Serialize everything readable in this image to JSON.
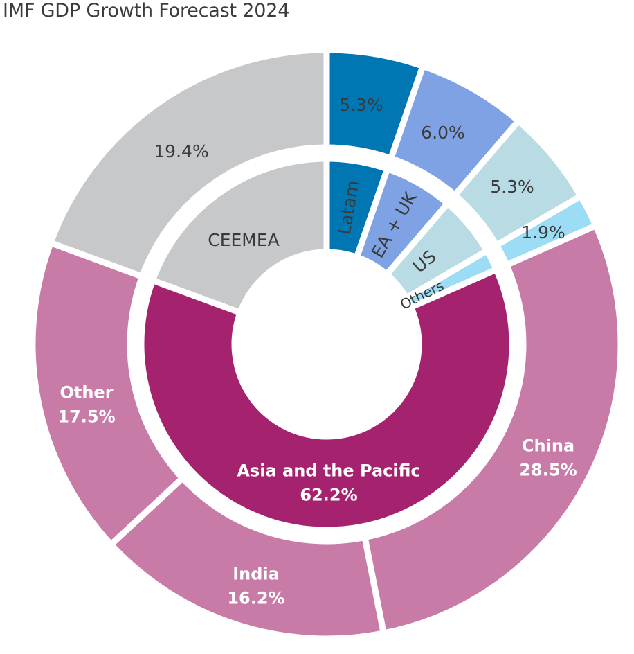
{
  "chart_data": {
    "type": "pie",
    "title": "IMF GDP Growth Forecast 2024",
    "inner": [
      {
        "label": "Latam",
        "start": 0,
        "end": 5.3,
        "color": "#0077B3",
        "text": "#3a3a3a",
        "bold": false
      },
      {
        "label": "EA + UK",
        "start": 5.3,
        "end": 11.3,
        "color": "#7EA2E3",
        "text": "#3a3a3a",
        "bold": false
      },
      {
        "label": "US",
        "start": 11.3,
        "end": 16.6,
        "color": "#B8DBE4",
        "text": "#3a3a3a",
        "bold": false
      },
      {
        "label": "Others",
        "start": 16.6,
        "end": 18.4,
        "color": "#9CDCF5",
        "text": "#3a3a3a",
        "bold": false
      },
      {
        "label": "Asia and the Pacific",
        "value_label": "62.2%",
        "start": 18.4,
        "end": 80.6,
        "color": "#A5236E",
        "text": "#ffffff",
        "bold": true
      },
      {
        "label": "CEEMEA",
        "start": 80.6,
        "end": 100,
        "color": "#C7C8CA",
        "text": "#3a3a3a",
        "bold": false
      }
    ],
    "outer": [
      {
        "value_label": "5.3%",
        "start": 0,
        "end": 5.3,
        "color": "#0077B3",
        "text": "#3a3a3a",
        "bold": false
      },
      {
        "value_label": "6.0%",
        "start": 5.3,
        "end": 11.3,
        "color": "#7EA2E3",
        "text": "#3a3a3a",
        "bold": false
      },
      {
        "value_label": "5.3%",
        "start": 11.3,
        "end": 16.6,
        "color": "#B8DBE4",
        "text": "#3a3a3a",
        "bold": false
      },
      {
        "value_label": "1.9%",
        "start": 16.6,
        "end": 18.4,
        "color": "#9CDCF5",
        "text": "#3a3a3a",
        "bold": false
      },
      {
        "label": "China",
        "value_label": "28.5%",
        "start": 18.4,
        "end": 46.9,
        "color": "#C97BA8",
        "text": "#ffffff",
        "bold": true
      },
      {
        "label": "India",
        "value_label": "16.2%",
        "start": 46.9,
        "end": 63.1,
        "color": "#C97BA8",
        "text": "#ffffff",
        "bold": true
      },
      {
        "label": "Other",
        "value_label": "17.5%",
        "start": 63.1,
        "end": 80.6,
        "color": "#C97BA8",
        "text": "#ffffff",
        "bold": true
      },
      {
        "value_label": "19.4%",
        "start": 80.6,
        "end": 100,
        "color": "#C7C8CA",
        "text": "#3a3a3a",
        "bold": false
      }
    ]
  }
}
